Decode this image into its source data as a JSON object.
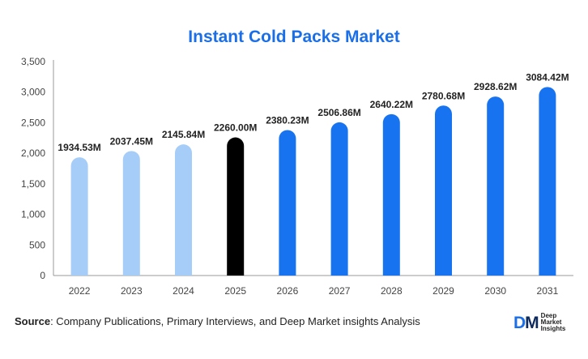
{
  "colors": {
    "title": "#1a6fe8",
    "historical": "#a6cdf7",
    "current": "#000000",
    "forecast": "#1773f0",
    "axis": "#999999",
    "logo_d": "#1a6fe8",
    "logo_m": "#0d2a5c"
  },
  "chart_data": {
    "type": "bar",
    "title": "Instant Cold Packs Market",
    "xlabel": "",
    "ylabel": "",
    "categories": [
      "2022",
      "2023",
      "2024",
      "2025",
      "2026",
      "2027",
      "2028",
      "2029",
      "2030",
      "2031"
    ],
    "values": [
      1934.53,
      2037.45,
      2145.84,
      2260.0,
      2380.23,
      2506.86,
      2640.22,
      2780.68,
      2928.62,
      3084.42
    ],
    "data_labels": [
      "1934.53M",
      "2037.45M",
      "2145.84M",
      "2260.00M",
      "2380.23M",
      "2506.86M",
      "2640.22M",
      "2780.68M",
      "2928.62M",
      "3084.42M"
    ],
    "bar_groups": [
      "historical",
      "historical",
      "historical",
      "current",
      "forecast",
      "forecast",
      "forecast",
      "forecast",
      "forecast",
      "forecast"
    ],
    "ylim": [
      0,
      3500
    ],
    "yticks": [
      0,
      500,
      1000,
      1500,
      2000,
      2500,
      3000,
      3500
    ],
    "ytick_labels": [
      "0",
      "500",
      "1,000",
      "1,500",
      "2,000",
      "2,500",
      "3,000",
      "3,500"
    ],
    "grid": false,
    "legend": "none"
  },
  "footer": {
    "source_label": "Source",
    "source_text": ": Company Publications, Primary Interviews, and Deep Market insights Analysis"
  },
  "logo": {
    "mark_d": "D",
    "mark_m": "M",
    "line1": "Deep",
    "line2": "Market",
    "line3": "Insights"
  }
}
